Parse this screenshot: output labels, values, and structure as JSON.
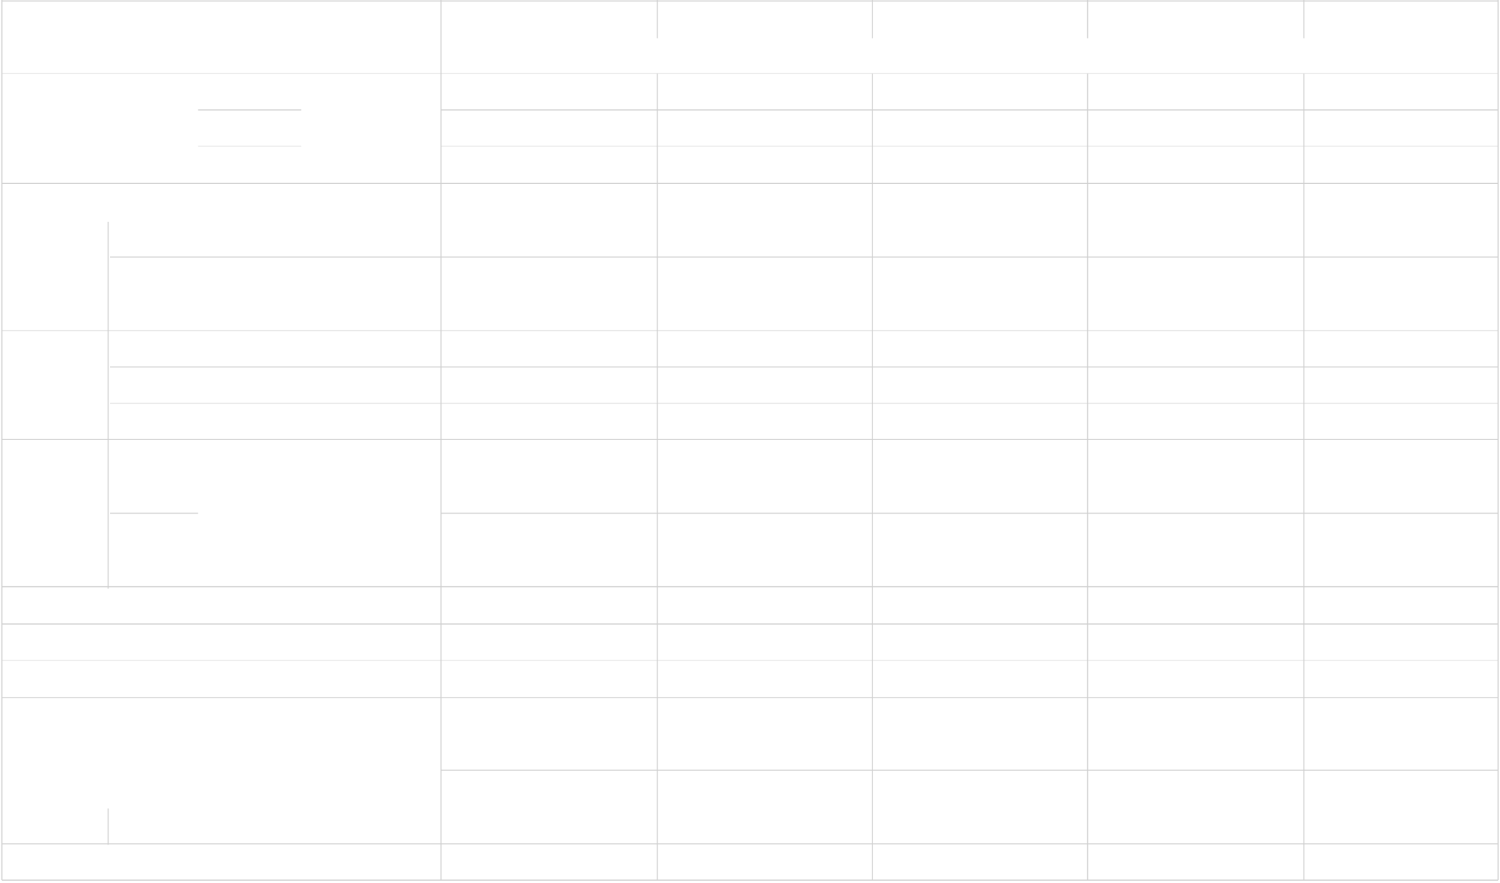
{
  "table": {
    "header_cells": [],
    "rows": []
  },
  "colors": {
    "grid_line": "#cfcfcf",
    "grid_line_light": "#e6e6e6",
    "background": "#ffffff"
  }
}
